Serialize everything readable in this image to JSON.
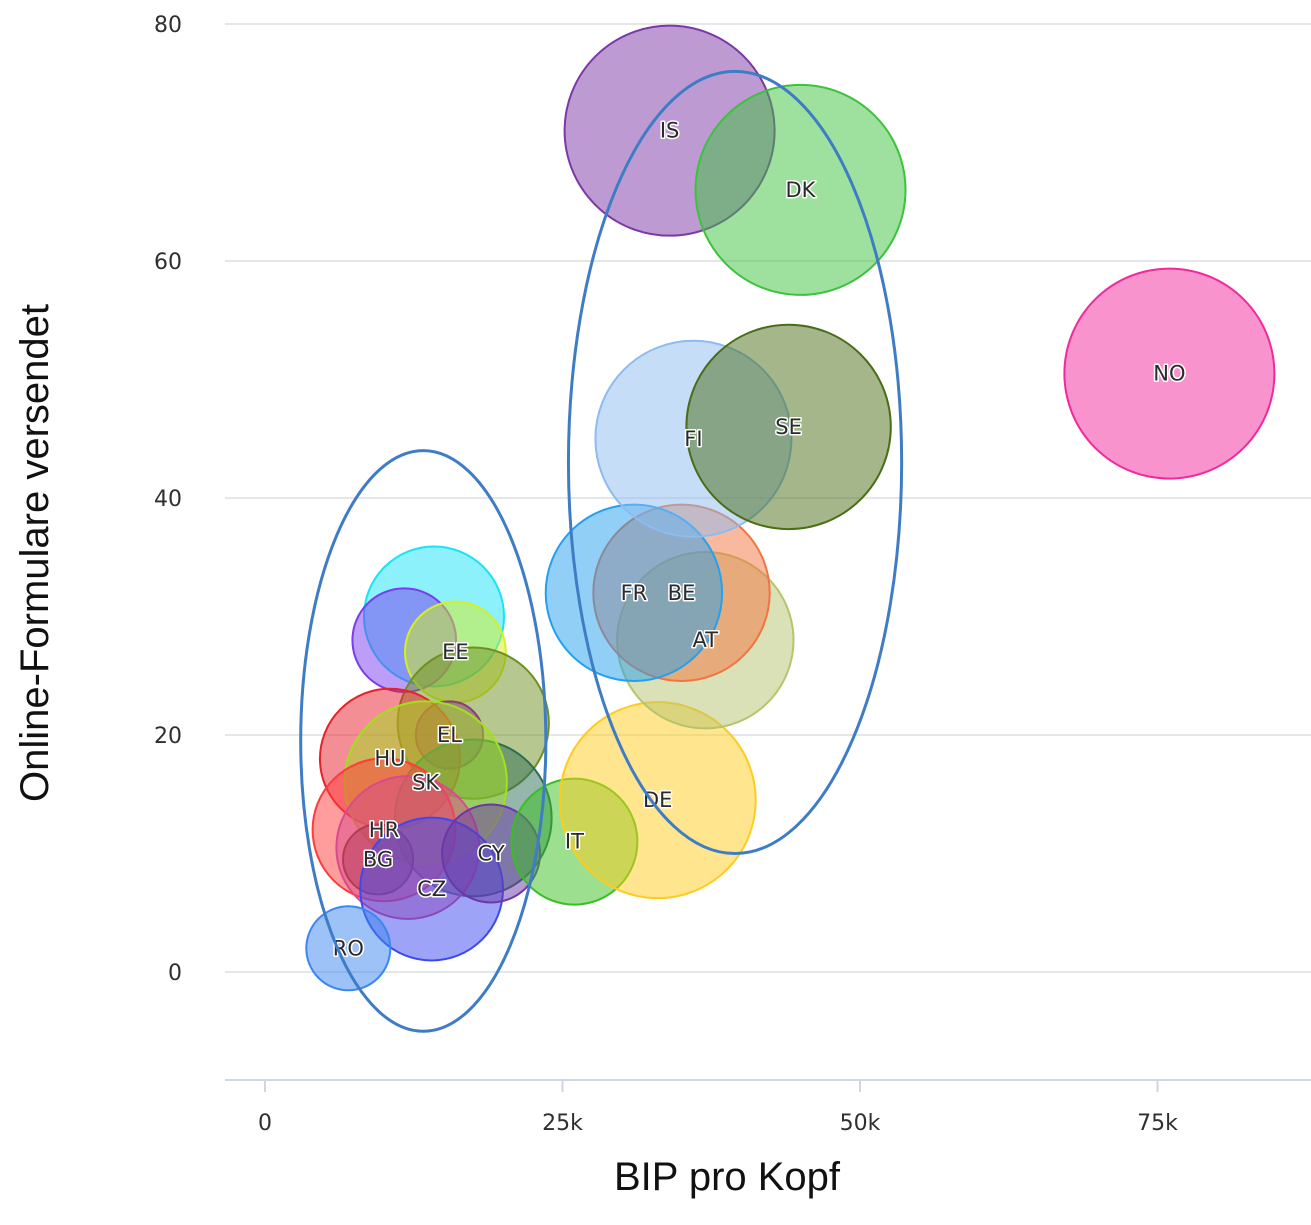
{
  "chart_data": {
    "type": "scatter",
    "subtype": "bubble",
    "title": "",
    "xlabel": "BIP pro Kopf",
    "ylabel": "Online-Formulare versendet",
    "xlim": [
      -2000,
      88000
    ],
    "ylim": [
      -9,
      80
    ],
    "x_ticks": [
      0,
      25000,
      50000,
      75000
    ],
    "x_tick_labels": [
      "0",
      "25k",
      "50k",
      "75k"
    ],
    "y_ticks": [
      0,
      20,
      40,
      60,
      80
    ],
    "y_tick_labels": [
      "0",
      "20",
      "40",
      "60",
      "80"
    ],
    "grid": "horizontal",
    "legend": "none",
    "points": [
      {
        "label": "",
        "x": 14200,
        "y": 30,
        "size": 1,
        "color": "#19e3f5"
      },
      {
        "label": "",
        "x": 11700,
        "y": 28,
        "size": 0.74,
        "color": "#7a3cf0"
      },
      {
        "label": "EE",
        "x": 16000,
        "y": 27,
        "size": 0.72,
        "color": "#d6f01e"
      },
      {
        "label": "",
        "x": 17500,
        "y": 21,
        "size": 1.08,
        "color": "#6f8f22"
      },
      {
        "label": "EL",
        "x": 15500,
        "y": 20,
        "size": 0.48,
        "color": "#8c3c7c"
      },
      {
        "label": "HU",
        "x": 10500,
        "y": 18,
        "size": 1,
        "color": "#e8202a"
      },
      {
        "label": "",
        "x": 17500,
        "y": 13,
        "size": 1.12,
        "color": "#2c6e55"
      },
      {
        "label": "SK",
        "x": 13500,
        "y": 16,
        "size": 1.16,
        "color": "#a2e01e"
      },
      {
        "label": "HR",
        "x": 10000,
        "y": 12,
        "size": 1.02,
        "color": "#ff3b3b"
      },
      {
        "label": "",
        "x": 12000,
        "y": 10.5,
        "size": 1.02,
        "color": "#d94a8c"
      },
      {
        "label": "BG",
        "x": 9500,
        "y": 9.5,
        "size": 0.5,
        "color": "#b23a5a"
      },
      {
        "label": "CZ",
        "x": 14000,
        "y": 7,
        "size": 1.02,
        "color": "#3b4af0"
      },
      {
        "label": "CY",
        "x": 19000,
        "y": 10,
        "size": 0.7,
        "color": "#6b38a8"
      },
      {
        "label": "RO",
        "x": 7000,
        "y": 2,
        "size": 0.6,
        "color": "#3b86f0"
      },
      {
        "label": "IT",
        "x": 26000,
        "y": 11,
        "size": 0.9,
        "color": "#38c020"
      },
      {
        "label": "DE",
        "x": 33000,
        "y": 14.5,
        "size": 1.4,
        "color": "#ffcc1e"
      },
      {
        "label": "AT",
        "x": 37000,
        "y": 28,
        "size": 1.26,
        "color": "#b6c46e"
      },
      {
        "label": "BE",
        "x": 35000,
        "y": 32,
        "size": 1.26,
        "color": "#f27440"
      },
      {
        "label": "FR",
        "x": 31000,
        "y": 32,
        "size": 1.26,
        "color": "#23a0f0"
      },
      {
        "label": "FI",
        "x": 36000,
        "y": 45,
        "size": 1.4,
        "color": "#8cbcf0"
      },
      {
        "label": "SE",
        "x": 44000,
        "y": 46,
        "size": 1.46,
        "color": "#4a6e16"
      },
      {
        "label": "IS",
        "x": 34000,
        "y": 71,
        "size": 1.5,
        "color": "#7c38a6"
      },
      {
        "label": "DK",
        "x": 45000,
        "y": 66,
        "size": 1.5,
        "color": "#3dc23e"
      },
      {
        "label": "NO",
        "x": 76000,
        "y": 50.5,
        "size": 1.5,
        "color": "#f2289e"
      }
    ],
    "annotations": [
      {
        "type": "ellipse",
        "cx": 13300,
        "cy": 19.5,
        "rx": 10300,
        "ry": 24.5,
        "color": "#3f7cc6"
      },
      {
        "type": "ellipse",
        "cx": 39500,
        "cy": 43,
        "rx": 14000,
        "ry": 33,
        "color": "#3f7cc6"
      }
    ]
  }
}
